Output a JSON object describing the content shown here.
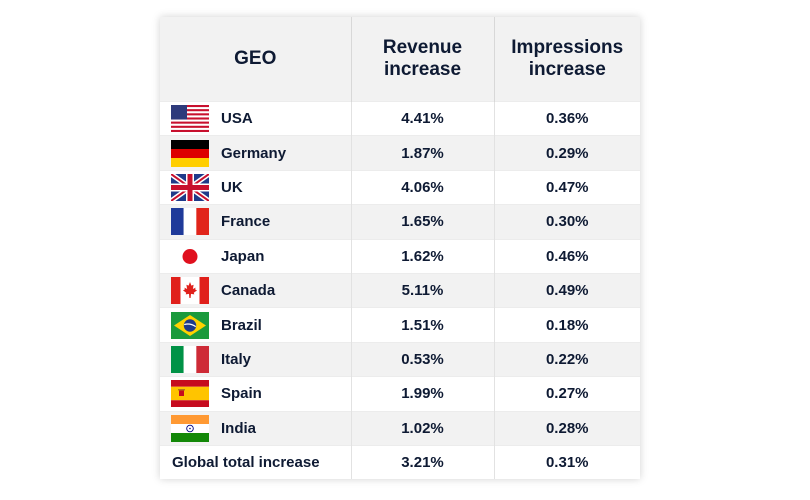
{
  "headers": {
    "geo": "GEO",
    "revenue": "Revenue increase",
    "impressions": "Impressions increase"
  },
  "rows": [
    {
      "country": "USA",
      "flag": "us-flag-icon",
      "revenue": "4.41%",
      "impressions": "0.36%"
    },
    {
      "country": "Germany",
      "flag": "germany-flag-icon",
      "revenue": "1.87%",
      "impressions": "0.29%"
    },
    {
      "country": "UK",
      "flag": "uk-flag-icon",
      "revenue": "4.06%",
      "impressions": "0.47%"
    },
    {
      "country": "France",
      "flag": "france-flag-icon",
      "revenue": "1.65%",
      "impressions": "0.30%"
    },
    {
      "country": "Japan",
      "flag": "japan-flag-icon",
      "revenue": "1.62%",
      "impressions": "0.46%"
    },
    {
      "country": "Canada",
      "flag": "canada-flag-icon",
      "revenue": "5.11%",
      "impressions": "0.49%"
    },
    {
      "country": "Brazil",
      "flag": "brazil-flag-icon",
      "revenue": "1.51%",
      "impressions": "0.18%"
    },
    {
      "country": "Italy",
      "flag": "italy-flag-icon",
      "revenue": "0.53%",
      "impressions": "0.22%"
    },
    {
      "country": "Spain",
      "flag": "spain-flag-icon",
      "revenue": "1.99%",
      "impressions": "0.27%"
    },
    {
      "country": "India",
      "flag": "india-flag-icon",
      "revenue": "1.02%",
      "impressions": "0.28%"
    }
  ],
  "total": {
    "label": "Global total increase",
    "revenue": "3.21%",
    "impressions": "0.31%"
  },
  "colors": {
    "text": "#0e1a33",
    "header_bg": "#f2f2f2",
    "stripe_bg": "#f2f2f2"
  }
}
